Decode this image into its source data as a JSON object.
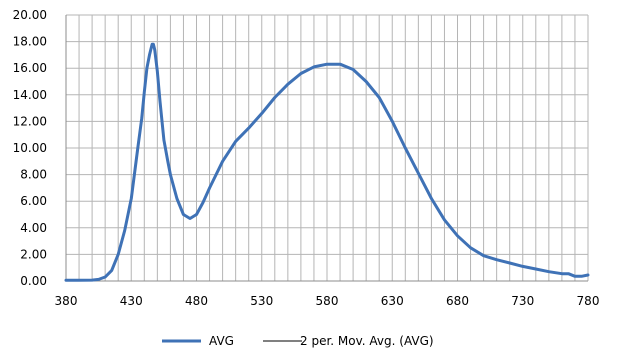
{
  "chart_data": {
    "type": "line",
    "xlim": [
      380,
      780
    ],
    "ylim": [
      0,
      20
    ],
    "x_ticks": [
      "380",
      "430",
      "480",
      "530",
      "580",
      "630",
      "680",
      "730",
      "780"
    ],
    "y_ticks": [
      "0.00",
      "2.00",
      "4.00",
      "6.00",
      "8.00",
      "10.00",
      "12.00",
      "14.00",
      "16.00",
      "18.00",
      "20.00"
    ],
    "grid": "on",
    "legend_position": "bottom",
    "series": [
      {
        "name": "AVG",
        "color": "#3f72b6",
        "x": [
          380,
          390,
          400,
          405,
          410,
          415,
          420,
          425,
          430,
          435,
          438,
          440,
          442,
          444,
          446,
          447,
          448,
          450,
          452,
          455,
          458,
          460,
          465,
          470,
          475,
          480,
          485,
          490,
          500,
          510,
          520,
          530,
          540,
          550,
          560,
          570,
          580,
          590,
          600,
          610,
          620,
          630,
          640,
          650,
          660,
          670,
          680,
          690,
          700,
          710,
          720,
          730,
          740,
          750,
          760,
          765,
          770,
          775,
          780
        ],
        "values": [
          0.05,
          0.05,
          0.07,
          0.12,
          0.3,
          0.8,
          2.0,
          3.8,
          6.2,
          10.0,
          12.2,
          14.2,
          16.0,
          17.0,
          17.8,
          17.8,
          17.4,
          15.8,
          13.5,
          10.6,
          9.0,
          8.0,
          6.2,
          5.0,
          4.7,
          5.0,
          5.9,
          7.0,
          9.0,
          10.5,
          11.5,
          12.6,
          13.8,
          14.8,
          15.6,
          16.1,
          16.3,
          16.3,
          15.9,
          15.0,
          13.8,
          12.0,
          10.0,
          8.1,
          6.2,
          4.6,
          3.4,
          2.5,
          1.9,
          1.6,
          1.35,
          1.1,
          0.9,
          0.7,
          0.55,
          0.55,
          0.35,
          0.35,
          0.45
        ]
      },
      {
        "name": "2 per. Mov. Avg. (AVG)",
        "color": "#000000",
        "x": [],
        "values": []
      }
    ]
  }
}
